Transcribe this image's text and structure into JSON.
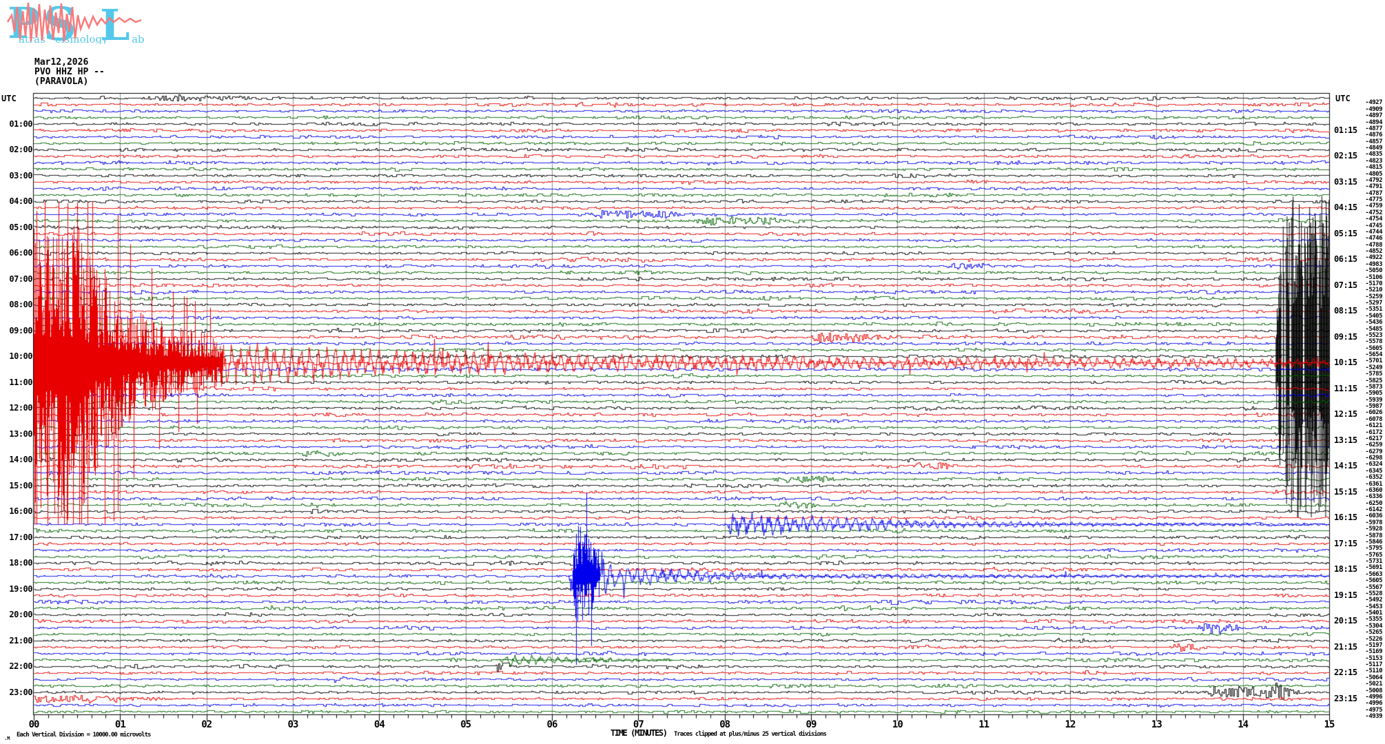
{
  "header": {
    "date": "Mar12,2026",
    "station": "PVO HHZ HP --",
    "site": "(PARAVOLA)"
  },
  "logo": {
    "letters": [
      "P",
      "S",
      "L"
    ],
    "words": [
      "atras",
      "eismology",
      "ab"
    ],
    "letter_color": "#55c8ea",
    "wiggle_color": "#f87a7a"
  },
  "axis": {
    "utc_left": "UTC",
    "utc_right": "UTC",
    "time_label": "TIME (MINUTES)",
    "minute_labels": [
      "00",
      "01",
      "02",
      "03",
      "04",
      "05",
      "06",
      "07",
      "08",
      "09",
      "10",
      "11",
      "12",
      "13",
      "14",
      "15"
    ]
  },
  "footer": {
    "prefix": ".M",
    "division_note": "Each Vertical Division = 10000.00 microvolts",
    "clip_note": "Traces clipped at plus/minus 25 vertical divisions"
  },
  "chart_data": {
    "type": "helicorder",
    "rows": 96,
    "minutes_per_row": 15,
    "start_utc": "00:00",
    "minor_tick_interval_sec": 10,
    "clip_divisions": 25,
    "division_microvolts": "10000.00",
    "trace_color_cycle": [
      "#000000",
      "#e80000",
      "#0000ee",
      "#006400"
    ],
    "grid_color": "#8c8c8c",
    "left_hour_labels": [
      "01:00",
      "02:00",
      "03:00",
      "04:00",
      "05:00",
      "06:00",
      "07:00",
      "08:00",
      "09:00",
      "10:00",
      "11:00",
      "12:00",
      "13:00",
      "14:00",
      "15:00",
      "16:00",
      "17:00",
      "18:00",
      "19:00",
      "20:00",
      "21:00",
      "22:00",
      "23:00"
    ],
    "right_hour_labels": [
      "01:15",
      "02:15",
      "03:15",
      "04:15",
      "05:15",
      "06:15",
      "07:15",
      "08:15",
      "09:15",
      "10:15",
      "11:15",
      "12:15",
      "13:15",
      "14:15",
      "15:15",
      "16:15",
      "17:15",
      "18:15",
      "19:15",
      "20:15",
      "21:15",
      "22:15",
      "23:15"
    ],
    "right_offset_values": [
      -4927,
      -4909,
      -4897,
      -4894,
      -4877,
      -4876,
      -4857,
      -4849,
      -4835,
      -4823,
      -4815,
      -4805,
      -4792,
      -4791,
      -4787,
      -4775,
      -4759,
      -4752,
      -4754,
      -4745,
      -4744,
      -4746,
      -4788,
      -4852,
      -4922,
      -4983,
      -5050,
      -5106,
      -5170,
      -5210,
      -5259,
      -5297,
      -5351,
      -5405,
      -5436,
      -5485,
      -5523,
      -5578,
      -5605,
      -5654,
      -5701,
      -5249,
      -5785,
      -5825,
      -5873,
      -5905,
      -5939,
      -5987,
      -6026,
      -6078,
      -6121,
      -6172,
      -6217,
      -6259,
      -6279,
      -6298,
      -6324,
      -6345,
      -6352,
      -6361,
      -6360,
      -6336,
      -6250,
      -6142,
      -6036,
      -5978,
      -5928,
      -5878,
      -5846,
      -5795,
      -5765,
      -5731,
      -5691,
      -5663,
      -5605,
      -5567,
      -5528,
      -5492,
      -5453,
      -5401,
      -5355,
      -5304,
      -5265,
      -5226,
      -5197,
      -5169,
      -5153,
      -5117,
      -5110,
      -5064,
      -5021,
      -5008,
      -4996,
      -4996,
      -4975,
      -4939
    ],
    "events": [
      {
        "name": "mainshock-onset-clipped",
        "row": 40,
        "utc_row": "10:00",
        "style": "solid-block",
        "env": [
          [
            14.38,
            60
          ],
          [
            14.45,
            234
          ],
          [
            15,
            234
          ]
        ]
      },
      {
        "name": "mainshock-coda",
        "row": 41,
        "utc_row": "10:15",
        "style": "spiky",
        "env": [
          [
            0,
            234
          ],
          [
            0.5,
            234
          ],
          [
            0.75,
            150
          ],
          [
            1.1,
            92
          ],
          [
            1.6,
            55
          ],
          [
            2.4,
            32
          ],
          [
            4,
            20
          ],
          [
            7,
            13
          ],
          [
            11,
            9
          ],
          [
            15,
            7
          ]
        ]
      },
      {
        "name": "aftershock-16-30",
        "row": 66,
        "utc_row": "16:30",
        "style": "burst",
        "env": [
          [
            8.02,
            0
          ],
          [
            8.08,
            24
          ],
          [
            8.6,
            16
          ],
          [
            9.2,
            12
          ],
          [
            10.5,
            6
          ],
          [
            12.5,
            3
          ],
          [
            15,
            2
          ]
        ]
      },
      {
        "name": "local-event-18-30",
        "row": 74,
        "utc_row": "18:30",
        "style": "spiky-burst",
        "env": [
          [
            6.18,
            0
          ],
          [
            6.3,
            82
          ],
          [
            6.5,
            45
          ],
          [
            6.7,
            18
          ],
          [
            7.4,
            11
          ],
          [
            8.8,
            4
          ],
          [
            15,
            2
          ]
        ]
      },
      {
        "name": "small-event-21-45",
        "row": 87,
        "utc_row": "21:45",
        "style": "burst",
        "env": [
          [
            5.35,
            0
          ],
          [
            5.5,
            9
          ],
          [
            6.1,
            5
          ],
          [
            7.0,
            3
          ],
          [
            7.4,
            0
          ]
        ]
      },
      {
        "name": "noise-00-00",
        "row": 0,
        "style": "minor",
        "env": [
          [
            1.25,
            0
          ],
          [
            1.45,
            3
          ],
          [
            2.3,
            2.2
          ],
          [
            2.55,
            0
          ]
        ]
      },
      {
        "name": "noise-04-30",
        "row": 18,
        "style": "minor",
        "env": [
          [
            6.45,
            0
          ],
          [
            6.6,
            5
          ],
          [
            7.3,
            3
          ],
          [
            7.5,
            0
          ]
        ]
      },
      {
        "name": "noise-04-45",
        "row": 19,
        "style": "minor",
        "env": [
          [
            7.55,
            0
          ],
          [
            7.7,
            4
          ],
          [
            8.5,
            3
          ],
          [
            8.7,
            0
          ]
        ]
      },
      {
        "name": "noise-06-30",
        "row": 26,
        "style": "minor",
        "env": [
          [
            10.55,
            0
          ],
          [
            10.65,
            4
          ],
          [
            11.0,
            3
          ],
          [
            11.1,
            0
          ]
        ]
      },
      {
        "name": "noise-09-15",
        "row": 37,
        "style": "minor",
        "env": [
          [
            8.95,
            0
          ],
          [
            9.1,
            6
          ],
          [
            9.8,
            3
          ],
          [
            10.0,
            0
          ]
        ]
      },
      {
        "name": "noise-13-45",
        "row": 55,
        "style": "minor",
        "env": [
          [
            3.05,
            0
          ],
          [
            3.15,
            4
          ],
          [
            3.5,
            3
          ],
          [
            3.6,
            0
          ]
        ]
      },
      {
        "name": "noise-14-15",
        "row": 57,
        "style": "minor",
        "env": [
          [
            10.15,
            0
          ],
          [
            10.25,
            5
          ],
          [
            10.6,
            3
          ],
          [
            10.7,
            0
          ]
        ]
      },
      {
        "name": "noise-14-45",
        "row": 59,
        "style": "minor",
        "env": [
          [
            8.55,
            0
          ],
          [
            8.7,
            5
          ],
          [
            9.2,
            3
          ],
          [
            9.3,
            0
          ]
        ]
      },
      {
        "name": "noise-15-45",
        "row": 63,
        "style": "minor",
        "env": [
          [
            8.55,
            0
          ],
          [
            8.7,
            4
          ],
          [
            9.0,
            3
          ],
          [
            9.1,
            0
          ]
        ]
      },
      {
        "name": "noise-20-30",
        "row": 82,
        "style": "minor",
        "env": [
          [
            13.45,
            0
          ],
          [
            13.55,
            5
          ],
          [
            13.9,
            3
          ],
          [
            14.0,
            0
          ]
        ]
      },
      {
        "name": "noise-21-15",
        "row": 85,
        "style": "minor",
        "env": [
          [
            13.15,
            0
          ],
          [
            13.25,
            5
          ],
          [
            13.5,
            3
          ],
          [
            13.6,
            0
          ]
        ]
      },
      {
        "name": "spike-22-00",
        "row": 88,
        "style": "minor",
        "env": [
          [
            5.34,
            0
          ],
          [
            5.39,
            16
          ],
          [
            5.44,
            0
          ]
        ]
      },
      {
        "name": "noise-23-00",
        "row": 92,
        "style": "minor",
        "env": [
          [
            13.55,
            0
          ],
          [
            13.7,
            6
          ],
          [
            14.2,
            4
          ],
          [
            14.45,
            13
          ],
          [
            14.5,
            4
          ],
          [
            14.65,
            0
          ]
        ]
      },
      {
        "name": "noise-23-15",
        "row": 93,
        "style": "minor",
        "env": [
          [
            0,
            4
          ],
          [
            0.8,
            3
          ],
          [
            1.6,
            0
          ]
        ]
      }
    ]
  }
}
